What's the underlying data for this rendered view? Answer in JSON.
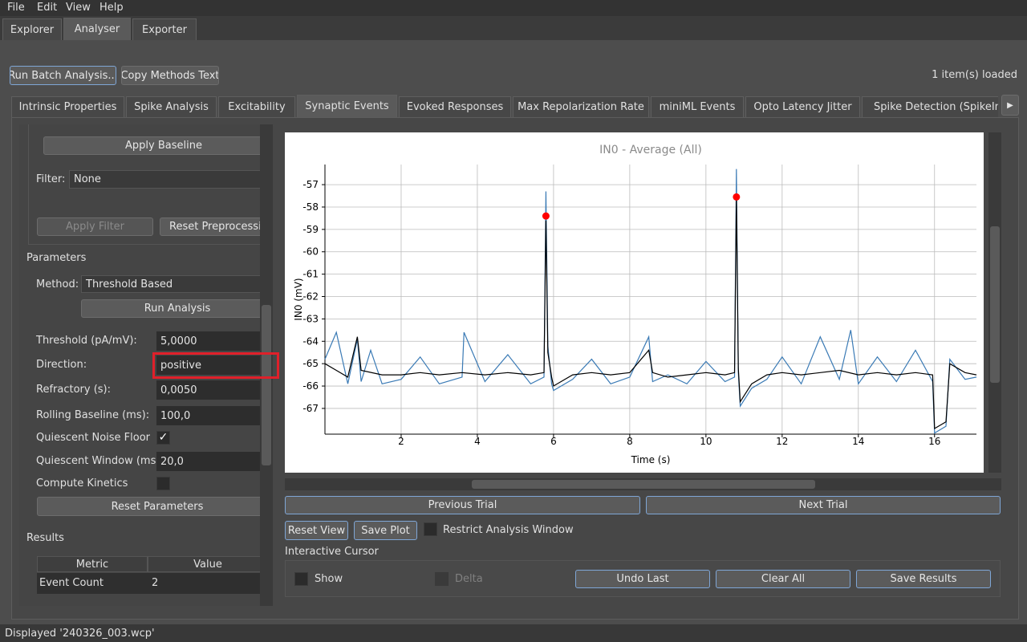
{
  "menu": [
    "File",
    "Edit",
    "View",
    "Help"
  ],
  "main_tabs": [
    "Explorer",
    "Analyser",
    "Exporter"
  ],
  "toolbar": {
    "batch": "Run Batch Analysis...",
    "copy": "Copy Methods Text",
    "status": "1 item(s) loaded"
  },
  "analysis_tabs": [
    "Intrinsic Properties",
    "Spike Analysis",
    "Excitability",
    "Synaptic Events",
    "Evoked Responses",
    "Max Repolarization Rate",
    "miniML Events",
    "Opto Latency Jitter",
    "Spike Detection (SpikeInt"
  ],
  "preprocessing": {
    "apply_baseline": "Apply Baseline",
    "filter_label": "Filter:",
    "filter_value": "None",
    "apply_filter": "Apply Filter",
    "reset": "Reset Preprocessing"
  },
  "parameters": {
    "heading": "Parameters",
    "method_label": "Method:",
    "method_value": "Threshold Based",
    "run": "Run Analysis",
    "fields": [
      {
        "label": "Threshold (pA/mV):",
        "value": "5,0000"
      },
      {
        "label": "Direction:",
        "value": "positive"
      },
      {
        "label": "Refractory (s):",
        "value": "0,0050"
      },
      {
        "label": "Rolling Baseline (ms):",
        "value": "100,0"
      },
      {
        "label": "Quiescent Noise Floor",
        "checked": true
      },
      {
        "label": "Quiescent Window (ms):",
        "value": "20,0"
      },
      {
        "label": "Compute Kinetics",
        "checked": false
      }
    ],
    "reset": "Reset Parameters"
  },
  "results": {
    "heading": "Results",
    "columns": [
      "Metric",
      "Value"
    ],
    "rows": [
      [
        "Event Count",
        "2"
      ]
    ]
  },
  "chart_data": {
    "type": "line",
    "title": "IN0 - Average (All)",
    "x_label": "Time (s)",
    "y_label": "IN0 (mV)",
    "xlim": [
      0,
      17.1
    ],
    "ylim": [
      -68.15,
      -56.1
    ],
    "xticks": [
      2,
      4,
      6,
      8,
      10,
      12,
      14,
      16
    ],
    "yticks": [
      -67,
      -66,
      -65,
      -64,
      -63,
      -62,
      -61,
      -60,
      -59,
      -58,
      -57
    ],
    "grid": true,
    "series": [
      {
        "color": "#3a7ab5",
        "x": [
          0,
          0.3,
          0.6,
          0.85,
          0.95,
          1.2,
          1.5,
          2.0,
          2.5,
          3.0,
          3.6,
          3.65,
          4.2,
          4.8,
          5.4,
          5.75,
          5.8,
          5.85,
          5.95,
          6.0,
          6.5,
          7.0,
          7.5,
          8.0,
          8.5,
          8.6,
          9.0,
          9.5,
          10.0,
          10.5,
          10.75,
          10.8,
          10.85,
          10.9,
          11.2,
          11.6,
          12.0,
          12.5,
          13.0,
          13.5,
          13.8,
          14.0,
          14.5,
          15.0,
          15.5,
          15.95,
          16.0,
          16.3,
          16.4,
          16.8,
          17.1
        ],
        "values": [
          -64.8,
          -63.6,
          -65.9,
          -63.9,
          -65.8,
          -64.4,
          -65.9,
          -65.7,
          -64.7,
          -65.9,
          -65.6,
          -63.6,
          -65.8,
          -64.6,
          -65.9,
          -65.6,
          -57.3,
          -64.2,
          -65.9,
          -66.2,
          -65.7,
          -64.8,
          -65.9,
          -65.6,
          -63.8,
          -65.8,
          -65.5,
          -65.9,
          -64.9,
          -65.8,
          -65.6,
          -56.3,
          -65.4,
          -66.9,
          -66.1,
          -65.7,
          -64.7,
          -65.9,
          -63.8,
          -65.7,
          -63.5,
          -65.9,
          -64.7,
          -65.8,
          -64.4,
          -65.8,
          -68.1,
          -67.8,
          -64.8,
          -65.7,
          -65.6
        ]
      },
      {
        "color": "#000000",
        "x": [
          0,
          0.3,
          0.6,
          0.85,
          0.95,
          1.5,
          2.0,
          2.5,
          3.0,
          3.6,
          4.2,
          4.8,
          5.4,
          5.75,
          5.8,
          5.85,
          5.95,
          6.0,
          6.5,
          7.0,
          7.5,
          8.0,
          8.5,
          8.6,
          9.0,
          9.5,
          10.0,
          10.5,
          10.75,
          10.8,
          10.85,
          10.9,
          11.2,
          11.6,
          12.0,
          12.5,
          13.0,
          13.5,
          14.0,
          14.5,
          15.0,
          15.5,
          15.95,
          16.0,
          16.3,
          16.4,
          16.8,
          17.1
        ],
        "values": [
          -65.0,
          -65.3,
          -65.6,
          -63.8,
          -65.3,
          -65.5,
          -65.5,
          -65.4,
          -65.5,
          -65.4,
          -65.5,
          -65.4,
          -65.5,
          -65.4,
          -58.6,
          -64.5,
          -65.6,
          -66.0,
          -65.5,
          -65.4,
          -65.5,
          -65.4,
          -64.4,
          -65.4,
          -65.6,
          -65.5,
          -65.4,
          -65.5,
          -65.4,
          -57.5,
          -65.2,
          -66.7,
          -65.9,
          -65.5,
          -65.4,
          -65.5,
          -65.4,
          -65.3,
          -65.5,
          -65.4,
          -65.5,
          -65.4,
          -65.5,
          -67.9,
          -67.6,
          -65.0,
          -65.4,
          -65.5
        ]
      }
    ],
    "events": {
      "color": "#ff0000",
      "x": [
        5.8,
        10.8
      ],
      "values": [
        -58.4,
        -57.55
      ]
    }
  },
  "plot_controls": {
    "previous": "Previous Trial",
    "next": "Next Trial",
    "reset_view": "Reset View",
    "save_plot": "Save Plot",
    "restrict": "Restrict Analysis Window",
    "cursor_heading": "Interactive Cursor",
    "show": "Show",
    "delta": "Delta",
    "undo": "Undo Last",
    "clear": "Clear All",
    "save_results": "Save Results"
  },
  "status_bar": "Displayed '240326_003.wcp'"
}
